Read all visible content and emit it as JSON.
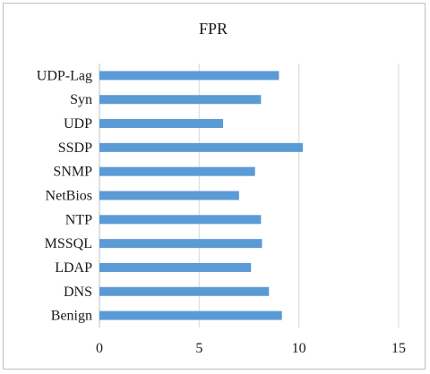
{
  "chart_data": {
    "type": "bar",
    "orientation": "horizontal",
    "title": "FPR",
    "xlabel": "",
    "ylabel": "",
    "categories": [
      "UDP-Lag",
      "Syn",
      "UDP",
      "SSDP",
      "SNMP",
      "NetBios",
      "NTP",
      "MSSQL",
      "LDAP",
      "DNS",
      "Benign"
    ],
    "values": [
      9.0,
      8.1,
      6.2,
      10.2,
      7.8,
      7.0,
      8.1,
      8.15,
      7.6,
      8.5,
      9.15
    ],
    "xlim": [
      0,
      15
    ],
    "xticks": [
      0,
      5,
      10,
      15
    ],
    "grid": true,
    "legend": false,
    "bar_color": "#5b9bd5",
    "grid_color": "#d9d9d9"
  }
}
